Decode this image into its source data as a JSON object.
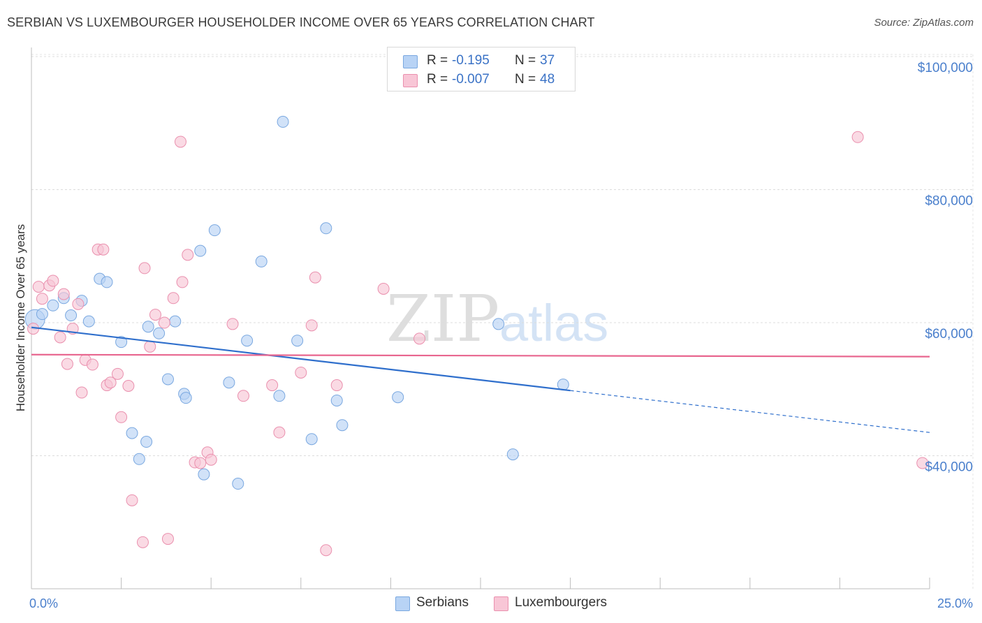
{
  "header": {
    "title": "SERBIAN VS LUXEMBOURGER HOUSEHOLDER INCOME OVER 65 YEARS CORRELATION CHART",
    "source": "Source: ZipAtlas.com"
  },
  "watermark": {
    "zip": "ZIP",
    "atlas": "atlas"
  },
  "legend": {
    "rows": [
      {
        "r_label": "R =",
        "r_value": "-0.195",
        "n_label": "N =",
        "n_value": "37",
        "color": "#b8d3f5",
        "border": "#7aa8e0"
      },
      {
        "r_label": "R =",
        "r_value": "-0.007",
        "n_label": "N =",
        "n_value": "48",
        "color": "#f8c6d6",
        "border": "#ea90ae"
      }
    ],
    "bottom": [
      {
        "label": "Serbians",
        "color": "#b8d3f5",
        "border": "#7aa8e0"
      },
      {
        "label": "Luxembourgers",
        "color": "#f8c6d6",
        "border": "#ea90ae"
      }
    ]
  },
  "chart_data": {
    "type": "scatter",
    "title": "SERBIAN VS LUXEMBOURGER HOUSEHOLDER INCOME OVER 65 YEARS CORRELATION CHART",
    "xlabel": "",
    "ylabel": "Householder Income Over 65 years",
    "xlim": [
      0,
      25
    ],
    "ylim": [
      20000,
      102000
    ],
    "x_tick_labels": [
      {
        "value": 0,
        "label": "0.0%"
      },
      {
        "value": 25,
        "label": "25.0%"
      }
    ],
    "y_tick_labels": [
      {
        "value": 40000,
        "label": "$40,000"
      },
      {
        "value": 60000,
        "label": "$60,000"
      },
      {
        "value": 80000,
        "label": "$80,000"
      },
      {
        "value": 100000,
        "label": "$100,000"
      }
    ],
    "x_minor_ticks": [
      0,
      2.5,
      5,
      7.5,
      10,
      12.5,
      15,
      17.5,
      20,
      22.5,
      25
    ],
    "grid": true,
    "legend_position": "top-center",
    "series": [
      {
        "name": "Serbians",
        "color": "#b8d3f5",
        "edge": "#7aa8e0",
        "line_color": "#2f6fcc",
        "trend": {
          "x0": 0,
          "y0": 59300,
          "x1": 15,
          "y1": 49800,
          "x_dash_end": 25,
          "y_dash_end": 43500
        },
        "points": [
          [
            0.1,
            60500
          ],
          [
            0.3,
            61300
          ],
          [
            0.6,
            62600
          ],
          [
            0.9,
            63700
          ],
          [
            1.1,
            61100
          ],
          [
            1.4,
            63300
          ],
          [
            1.6,
            60200
          ],
          [
            1.9,
            66600
          ],
          [
            2.1,
            66100
          ],
          [
            2.5,
            57100
          ],
          [
            2.8,
            43400
          ],
          [
            3.0,
            39500
          ],
          [
            3.2,
            42100
          ],
          [
            3.25,
            59400
          ],
          [
            3.55,
            58400
          ],
          [
            3.8,
            51500
          ],
          [
            4.0,
            60200
          ],
          [
            4.25,
            49300
          ],
          [
            4.3,
            48700
          ],
          [
            4.7,
            70800
          ],
          [
            4.8,
            37200
          ],
          [
            5.1,
            73900
          ],
          [
            5.5,
            51000
          ],
          [
            5.75,
            35800
          ],
          [
            6.0,
            57300
          ],
          [
            6.4,
            69200
          ],
          [
            6.9,
            49000
          ],
          [
            7.0,
            90200
          ],
          [
            7.4,
            57300
          ],
          [
            7.8,
            42500
          ],
          [
            8.2,
            74200
          ],
          [
            8.5,
            48300
          ],
          [
            8.65,
            44600
          ],
          [
            10.2,
            48800
          ],
          [
            13.0,
            59800
          ],
          [
            13.4,
            40200
          ],
          [
            14.8,
            50700
          ]
        ]
      },
      {
        "name": "Luxembourgers",
        "color": "#f8c6d6",
        "edge": "#ea90ae",
        "line_color": "#e8668f",
        "trend": {
          "x0": 0,
          "y0": 55200,
          "x1": 25,
          "y1": 54900
        },
        "points": [
          [
            0.05,
            59100
          ],
          [
            0.2,
            65400
          ],
          [
            0.3,
            63600
          ],
          [
            0.5,
            65600
          ],
          [
            0.6,
            66300
          ],
          [
            0.8,
            57800
          ],
          [
            0.9,
            64300
          ],
          [
            1.0,
            53800
          ],
          [
            1.15,
            59100
          ],
          [
            1.3,
            62800
          ],
          [
            1.4,
            49500
          ],
          [
            1.5,
            54400
          ],
          [
            1.7,
            53700
          ],
          [
            1.85,
            71000
          ],
          [
            2.0,
            71000
          ],
          [
            2.1,
            50600
          ],
          [
            2.2,
            51000
          ],
          [
            2.4,
            52300
          ],
          [
            2.5,
            45800
          ],
          [
            2.7,
            50500
          ],
          [
            2.8,
            33300
          ],
          [
            3.1,
            27000
          ],
          [
            3.15,
            68200
          ],
          [
            3.3,
            56400
          ],
          [
            3.45,
            61200
          ],
          [
            3.7,
            60000
          ],
          [
            3.8,
            27500
          ],
          [
            3.95,
            63700
          ],
          [
            4.15,
            87200
          ],
          [
            4.2,
            66100
          ],
          [
            4.35,
            70200
          ],
          [
            4.55,
            39000
          ],
          [
            4.7,
            38900
          ],
          [
            4.9,
            40500
          ],
          [
            5.0,
            39400
          ],
          [
            5.6,
            59800
          ],
          [
            5.9,
            49000
          ],
          [
            6.7,
            50600
          ],
          [
            6.9,
            43500
          ],
          [
            7.5,
            52500
          ],
          [
            7.8,
            59600
          ],
          [
            7.9,
            66800
          ],
          [
            8.2,
            25800
          ],
          [
            8.5,
            50600
          ],
          [
            9.8,
            65100
          ],
          [
            10.8,
            57600
          ],
          [
            23.0,
            87900
          ],
          [
            24.8,
            38900
          ]
        ]
      }
    ]
  }
}
